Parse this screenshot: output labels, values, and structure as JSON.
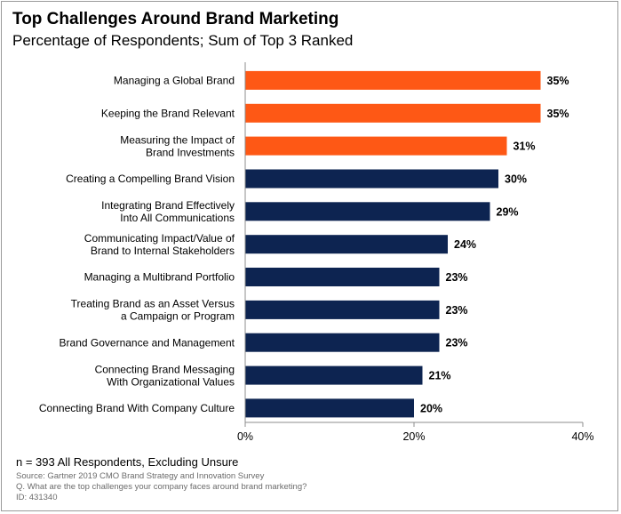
{
  "title": "Top Challenges Around Brand Marketing",
  "subtitle": "Percentage of Respondents; Sum of Top 3 Ranked",
  "chart_data": {
    "type": "bar",
    "orientation": "horizontal",
    "categories": [
      [
        "Managing a Global Brand"
      ],
      [
        "Keeping the Brand Relevant"
      ],
      [
        "Measuring the Impact of",
        "Brand Investments"
      ],
      [
        "Creating a Compelling Brand Vision"
      ],
      [
        "Integrating Brand Effectively",
        "Into All Communications"
      ],
      [
        "Communicating Impact/Value of",
        "Brand to Internal Stakeholders"
      ],
      [
        "Managing a Multibrand Portfolio"
      ],
      [
        "Treating Brand as an Asset Versus",
        "a Campaign or Program"
      ],
      [
        "Brand Governance and Management"
      ],
      [
        "Connecting Brand Messaging",
        "With Organizational Values"
      ],
      [
        "Connecting Brand With Company Culture"
      ]
    ],
    "values": [
      35,
      35,
      31,
      30,
      29,
      24,
      23,
      23,
      23,
      21,
      20
    ],
    "value_labels": [
      "35%",
      "35%",
      "31%",
      "30%",
      "29%",
      "24%",
      "23%",
      "23%",
      "23%",
      "21%",
      "20%"
    ],
    "highlight": [
      true,
      true,
      true,
      false,
      false,
      false,
      false,
      false,
      false,
      false,
      false
    ],
    "xlim": [
      0,
      40
    ],
    "xticks": [
      0,
      20,
      40
    ],
    "xtick_labels": [
      "0%",
      "20%",
      "40%"
    ],
    "colors": {
      "highlight": "#fe5815",
      "default": "#0d2451",
      "axis": "#8c8c8c"
    }
  },
  "footer": {
    "n": "n = 393 All Respondents, Excluding Unsure",
    "source": "Source: Gartner 2019 CMO Brand Strategy and Innovation Survey",
    "question": "Q. What are the top challenges your company faces around brand marketing?",
    "id": "ID: 431340"
  }
}
